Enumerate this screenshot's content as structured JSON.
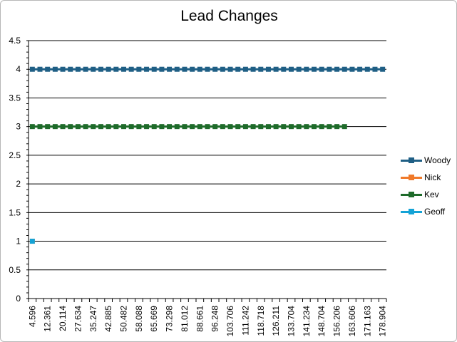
{
  "chart_data": {
    "type": "line",
    "title": "Lead Changes",
    "xlabel": "",
    "ylabel": "",
    "ylim": [
      0,
      4.5
    ],
    "yticks": [
      "0",
      "0.5",
      "1",
      "1.5",
      "2",
      "2.5",
      "3",
      "3.5",
      "4",
      "4.5"
    ],
    "xtick_labels": [
      "4.596",
      "12.361",
      "20.114",
      "27.634",
      "35.247",
      "42.885",
      "50.482",
      "58.088",
      "65.669",
      "73.298",
      "81.012",
      "88.661",
      "96.248",
      "103.706",
      "111.242",
      "118.718",
      "126.211",
      "133.704",
      "141.234",
      "148.704",
      "156.206",
      "163.606",
      "171.163",
      "178.904"
    ],
    "n_categories": 47,
    "grid": true,
    "legend_position": "right",
    "series": [
      {
        "name": "Woody",
        "color": "#1f5f85",
        "start": 0,
        "end": 46,
        "value": 4
      },
      {
        "name": "Nick",
        "color": "#f07a2a",
        "start": 0,
        "end": 0,
        "value": 1
      },
      {
        "name": "Kev",
        "color": "#1e6b2a",
        "start": 0,
        "end": 41,
        "value": 3
      },
      {
        "name": "Geoff",
        "color": "#14a3d6",
        "start": 0,
        "end": 0,
        "value": 1
      }
    ]
  }
}
